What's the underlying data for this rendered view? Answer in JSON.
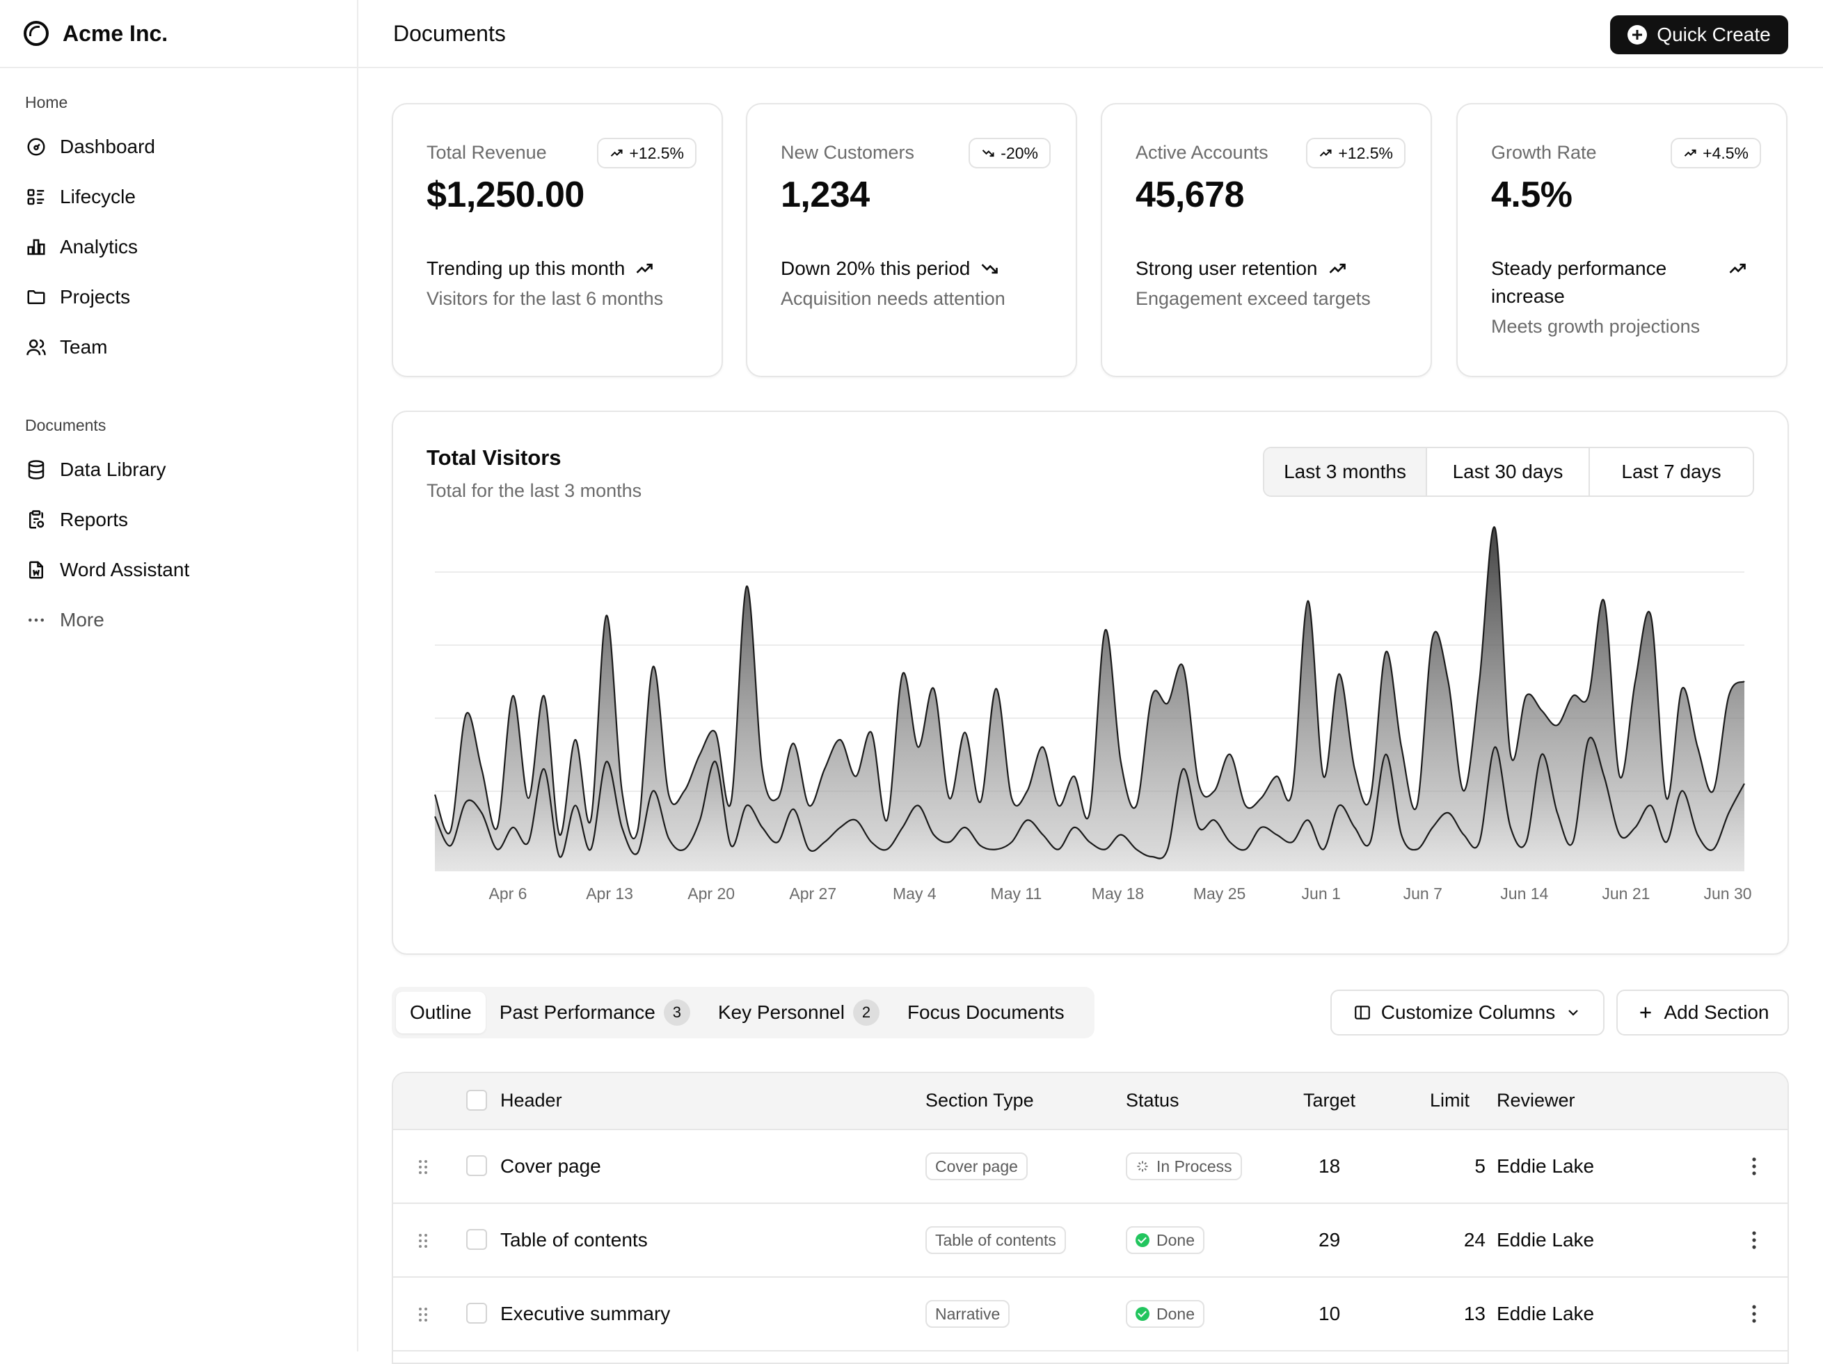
{
  "brand": {
    "name": "Acme Inc."
  },
  "header": {
    "title": "Documents",
    "quick_create_label": "Quick Create"
  },
  "sidebar": {
    "home_label": "Home",
    "home_items": [
      {
        "label": "Dashboard",
        "icon": "dashboard-icon"
      },
      {
        "label": "Lifecycle",
        "icon": "list-details-icon"
      },
      {
        "label": "Analytics",
        "icon": "chart-bar-icon"
      },
      {
        "label": "Projects",
        "icon": "folder-icon"
      },
      {
        "label": "Team",
        "icon": "users-icon"
      }
    ],
    "documents_label": "Documents",
    "document_items": [
      {
        "label": "Data Library",
        "icon": "database-icon"
      },
      {
        "label": "Reports",
        "icon": "report-icon"
      },
      {
        "label": "Word Assistant",
        "icon": "file-word-icon"
      },
      {
        "label": "More",
        "icon": "dots-icon"
      }
    ]
  },
  "cards": [
    {
      "label": "Total Revenue",
      "badge": "+12.5%",
      "badge_dir": "up",
      "value": "$1,250.00",
      "trend": "Trending up this month",
      "trend_dir": "up",
      "sub": "Visitors for the last 6 months"
    },
    {
      "label": "New Customers",
      "badge": "-20%",
      "badge_dir": "down",
      "value": "1,234",
      "trend": "Down 20% this period",
      "trend_dir": "down",
      "sub": "Acquisition needs attention"
    },
    {
      "label": "Active Accounts",
      "badge": "+12.5%",
      "badge_dir": "up",
      "value": "45,678",
      "trend": "Strong user retention",
      "trend_dir": "up",
      "sub": "Engagement exceed targets"
    },
    {
      "label": "Growth Rate",
      "badge": "+4.5%",
      "badge_dir": "up",
      "value": "4.5%",
      "trend": "Steady performance increase",
      "trend_dir": "up",
      "sub": "Meets growth projections"
    }
  ],
  "chart": {
    "title": "Total Visitors",
    "subtitle": "Total for the last 3 months",
    "ranges": [
      "Last 3 months",
      "Last 30 days",
      "Last 7 days"
    ],
    "active_range": 0
  },
  "chart_data": {
    "type": "area",
    "title": "Total Visitors",
    "subtitle": "Total for the last 3 months",
    "x_tick_labels": [
      "Apr 6",
      "Apr 13",
      "Apr 20",
      "Apr 27",
      "May 4",
      "May 11",
      "May 18",
      "May 25",
      "Jun 1",
      "Jun 7",
      "Jun 14",
      "Jun 21",
      "Jun 30"
    ],
    "stacked": true,
    "series": [
      {
        "values": [
          75,
          35,
          95,
          80,
          30,
          60,
          40,
          140,
          20,
          90,
          30,
          150,
          60,
          25,
          110,
          45,
          30,
          70,
          150,
          35,
          90,
          60,
          40,
          85,
          30,
          40,
          60,
          70,
          40,
          30,
          60,
          90,
          50,
          40,
          60,
          35,
          30,
          40,
          70,
          50,
          30,
          60,
          40,
          30,
          50,
          30,
          20,
          30,
          140,
          60,
          70,
          40,
          30,
          60,
          50,
          40,
          70,
          30,
          90,
          60,
          40,
          160,
          50,
          30,
          60,
          80,
          50,
          40,
          170,
          60,
          40,
          160,
          80,
          40,
          180,
          130,
          50,
          60,
          90,
          40,
          110,
          50,
          30,
          80,
          120
        ]
      },
      {
        "values": [
          30,
          20,
          120,
          60,
          30,
          180,
          60,
          100,
          30,
          90,
          40,
          200,
          50,
          30,
          170,
          60,
          80,
          90,
          40,
          60,
          300,
          80,
          60,
          90,
          60,
          100,
          120,
          60,
          150,
          40,
          210,
          80,
          200,
          60,
          130,
          60,
          220,
          60,
          40,
          120,
          60,
          70,
          40,
          300,
          100,
          60,
          220,
          200,
          140,
          60,
          40,
          120,
          60,
          40,
          80,
          70,
          300,
          100,
          180,
          80,
          60,
          140,
          120,
          60,
          260,
          180,
          60,
          220,
          300,
          100,
          200,
          60,
          120,
          200,
          60,
          240,
          80,
          200,
          260,
          60,
          140,
          120,
          80,
          160,
          140
        ]
      }
    ],
    "grid": true,
    "legend": "none"
  },
  "tabs": [
    {
      "label": "Outline",
      "count": ""
    },
    {
      "label": "Past Performance",
      "count": "3"
    },
    {
      "label": "Key Personnel",
      "count": "2"
    },
    {
      "label": "Focus Documents",
      "count": ""
    }
  ],
  "actions": {
    "customize_label": "Customize Columns",
    "add_section_label": "Add Section"
  },
  "table": {
    "columns": [
      "Header",
      "Section Type",
      "Status",
      "Target",
      "Limit",
      "Reviewer"
    ],
    "rows": [
      {
        "header": "Cover page",
        "type": "Cover page",
        "status": "In Process",
        "status_kind": "in-process",
        "target": "18",
        "limit": "5",
        "reviewer": "Eddie Lake"
      },
      {
        "header": "Table of contents",
        "type": "Table of contents",
        "status": "Done",
        "status_kind": "done",
        "target": "29",
        "limit": "24",
        "reviewer": "Eddie Lake"
      },
      {
        "header": "Executive summary",
        "type": "Narrative",
        "status": "Done",
        "status_kind": "done",
        "target": "10",
        "limit": "13",
        "reviewer": "Eddie Lake"
      }
    ]
  },
  "colors": {
    "accent": "#111111",
    "done": "#22c55e",
    "border": "#e6e6e6",
    "muted_text": "#6b6b6b"
  }
}
